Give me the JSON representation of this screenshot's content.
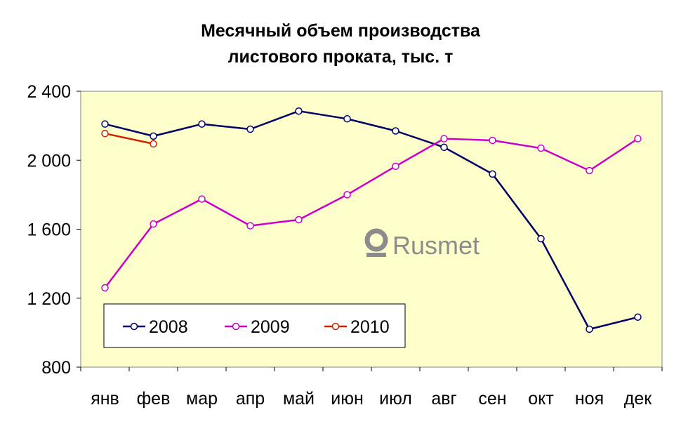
{
  "chart_data": {
    "type": "line",
    "title": [
      "Месячный объем производства",
      "листового проката, тыс. т"
    ],
    "categories": [
      "янв",
      "фев",
      "мар",
      "апр",
      "май",
      "июн",
      "июл",
      "авг",
      "сен",
      "окт",
      "ноя",
      "дек"
    ],
    "ylim": [
      800,
      2400
    ],
    "yticks": [
      800,
      1200,
      1600,
      2000,
      2400
    ],
    "ytick_labels": [
      "800",
      "1 200",
      "1 600",
      "2 000",
      "2 400"
    ],
    "grid": false,
    "legend_position": "bottom-left inside plot",
    "plot_background": "#ffffcc",
    "series": [
      {
        "name": "2008",
        "color": "#000066",
        "values": [
          2210,
          2140,
          2210,
          2180,
          2285,
          2240,
          2170,
          2075,
          1920,
          1545,
          1020,
          1090
        ]
      },
      {
        "name": "2009",
        "color": "#cc00cc",
        "values": [
          1260,
          1630,
          1775,
          1620,
          1655,
          1800,
          1965,
          2125,
          2115,
          2070,
          1940,
          2125
        ]
      },
      {
        "name": "2010",
        "color": "#cc2200",
        "values": [
          2155,
          2095,
          null,
          null,
          null,
          null,
          null,
          null,
          null,
          null,
          null,
          null
        ]
      }
    ]
  },
  "watermark": {
    "text": "Rusmet",
    "icon": "rusmet-logo-icon"
  }
}
